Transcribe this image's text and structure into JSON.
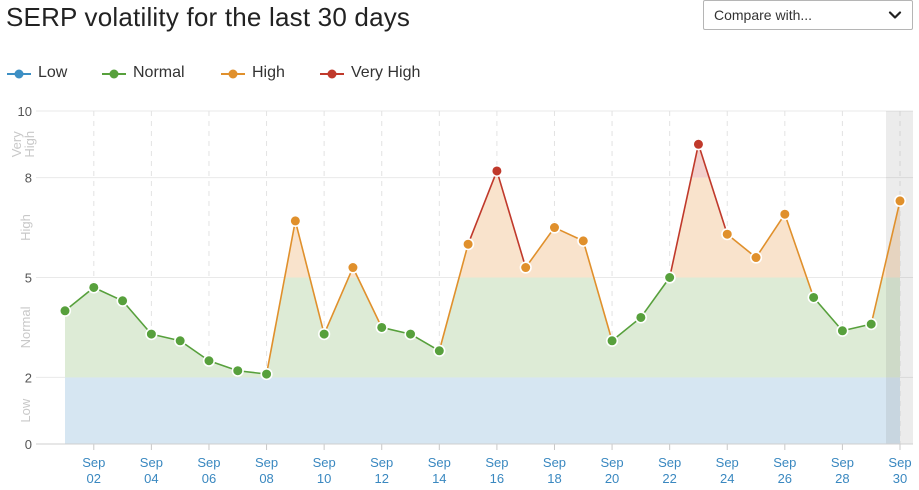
{
  "title": "SERP volatility for the last 30 days",
  "compare": {
    "label": "Compare with...",
    "icon": "chevron-down-icon"
  },
  "legend": [
    {
      "name": "Low",
      "color": "#3d8fc4"
    },
    {
      "name": "Normal",
      "color": "#57a03c"
    },
    {
      "name": "High",
      "color": "#e0902c"
    },
    {
      "name": "Very High",
      "color": "#c0392b"
    }
  ],
  "chart_data": {
    "type": "line",
    "y_ticks": [
      0,
      2,
      5,
      8,
      10
    ],
    "ylim": [
      0,
      10
    ],
    "bands": [
      {
        "label": "Low",
        "from": 0,
        "to": 2,
        "fill": "#d6e6f2"
      },
      {
        "label": "Normal",
        "from": 2,
        "to": 5,
        "fill": "#ddebd6"
      },
      {
        "label": "High",
        "from": 5,
        "to": 8,
        "fill": "#f9e3cc"
      },
      {
        "label": "Very High",
        "from": 8,
        "to": 10,
        "fill": "#f3d0cc"
      }
    ],
    "x_ticks": [
      {
        "month": "Sep",
        "day": "02",
        "x": 2
      },
      {
        "month": "Sep",
        "day": "04",
        "x": 4
      },
      {
        "month": "Sep",
        "day": "06",
        "x": 6
      },
      {
        "month": "Sep",
        "day": "08",
        "x": 8
      },
      {
        "month": "Sep",
        "day": "10",
        "x": 10
      },
      {
        "month": "Sep",
        "day": "12",
        "x": 12
      },
      {
        "month": "Sep",
        "day": "14",
        "x": 14
      },
      {
        "month": "Sep",
        "day": "16",
        "x": 16
      },
      {
        "month": "Sep",
        "day": "18",
        "x": 18
      },
      {
        "month": "Sep",
        "day": "20",
        "x": 20
      },
      {
        "month": "Sep",
        "day": "22",
        "x": 22
      },
      {
        "month": "Sep",
        "day": "24",
        "x": 24
      },
      {
        "month": "Sep",
        "day": "26",
        "x": 26
      },
      {
        "month": "Sep",
        "day": "28",
        "x": 28
      },
      {
        "month": "Sep",
        "day": "30",
        "x": 30
      }
    ],
    "highlight_x": 30,
    "x": [
      1,
      2,
      3,
      4,
      5,
      6,
      7,
      8,
      9,
      10,
      11,
      12,
      13,
      14,
      15,
      16,
      17,
      18,
      19,
      20,
      21,
      22,
      23,
      24,
      25,
      26,
      27,
      28,
      29,
      30
    ],
    "values": [
      4.0,
      4.7,
      4.3,
      3.3,
      3.1,
      2.5,
      2.2,
      2.1,
      6.7,
      3.3,
      5.3,
      3.5,
      3.3,
      2.8,
      6.0,
      8.2,
      5.3,
      6.5,
      6.1,
      3.1,
      3.8,
      5.0,
      9.0,
      6.3,
      5.6,
      6.9,
      4.4,
      3.4,
      3.6,
      7.3
    ]
  }
}
